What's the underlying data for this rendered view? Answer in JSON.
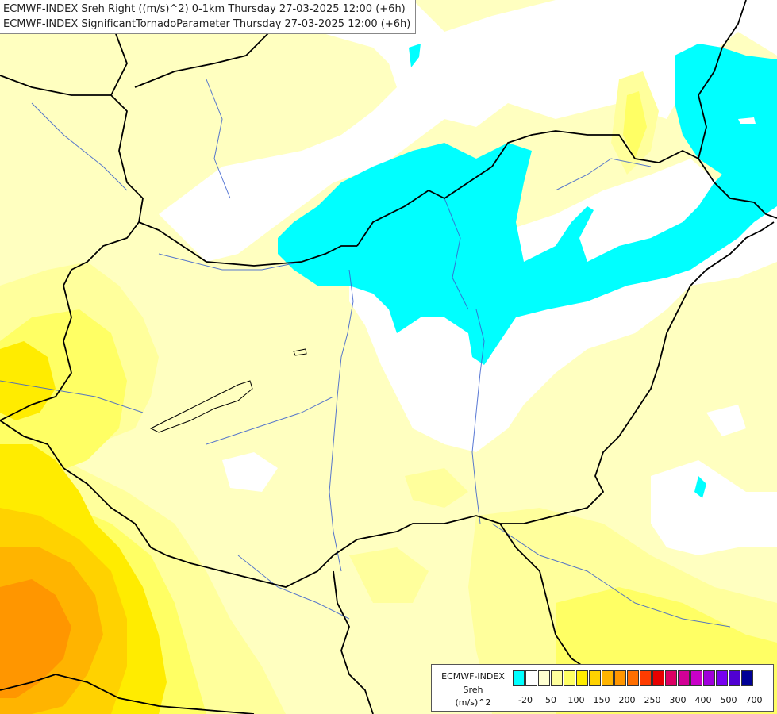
{
  "header": {
    "line1": "ECMWF-INDEX Sreh Right ((m/s)^2) 0-1km Thursday 27-03-2025 12:00 (+6h)",
    "line2": "ECMWF-INDEX SignificantTornadoParameter Thursday 27-03-2025 12:00 (+6h)"
  },
  "legend": {
    "title1": "ECMWF-INDEX",
    "title2": "Sreh",
    "title3": "(m/s)^2",
    "colors": [
      "#00ffff",
      "#ffffff",
      "#ffffd0",
      "#ffff9c",
      "#ffff64",
      "#ffec00",
      "#ffd200",
      "#ffb400",
      "#ff9600",
      "#ff6e00",
      "#ff3c00",
      "#e60000",
      "#dc0064",
      "#d20096",
      "#c800c8",
      "#a000dc",
      "#7800f0",
      "#5000d2",
      "#000096"
    ],
    "ticks": [
      {
        "label": "-20",
        "index": 1
      },
      {
        "label": "50",
        "index": 3
      },
      {
        "label": "100",
        "index": 5
      },
      {
        "label": "150",
        "index": 7
      },
      {
        "label": "200",
        "index": 9
      },
      {
        "label": "250",
        "index": 11
      },
      {
        "label": "300",
        "index": 13
      },
      {
        "label": "400",
        "index": 15
      },
      {
        "label": "500",
        "index": 17
      },
      {
        "label": "700",
        "index": 19
      }
    ]
  },
  "map": {
    "colors": {
      "background": "#ffffc0",
      "neutral": "#ffffff",
      "light": "#ffff9c",
      "medium": "#ffff64",
      "yellow": "#ffec00",
      "gold": "#ffd200",
      "orange": "#ffb400",
      "dark_orange": "#ff9600",
      "cyan": "#00ffff",
      "border": "#000000",
      "river": "#3a5fcd",
      "region": "#5577aa"
    }
  }
}
